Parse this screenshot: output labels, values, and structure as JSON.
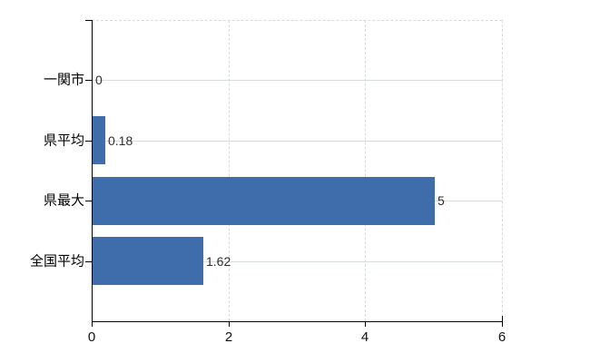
{
  "chart_data": {
    "type": "bar",
    "orientation": "horizontal",
    "title": "",
    "xlabel": "",
    "ylabel": "",
    "categories": [
      "一関市",
      "県平均",
      "県最大",
      "全国平均"
    ],
    "values": [
      0,
      0.18,
      5,
      1.62
    ],
    "value_labels": [
      "0",
      "0.18",
      "5",
      "1.62"
    ],
    "xlim": [
      0,
      6
    ],
    "xticks": [
      0,
      2,
      4,
      6
    ],
    "xtick_labels": [
      "0",
      "2",
      "4",
      "6"
    ],
    "grid": true,
    "legend": false,
    "bar_color": "#3f6dac",
    "grid_color": "#d6dcd6",
    "axis_color": "#000000",
    "value_label_color": "#2e2e2e",
    "tick_label_color": "#111111",
    "category_label_color": "#000000",
    "background": "#ffffff"
  }
}
